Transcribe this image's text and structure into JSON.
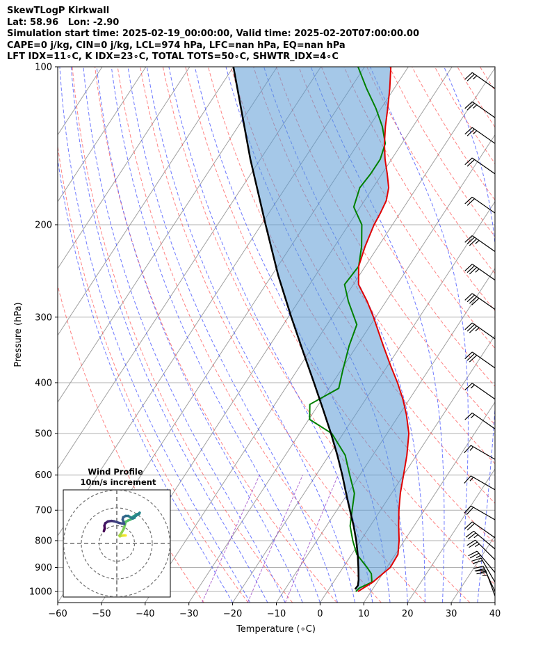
{
  "header": {
    "line1": "SkewTLogP Kirkwall",
    "line2": "Lat: 58.96   Lon: -2.90",
    "line3": "Simulation start time: 2025-02-19_00:00:00, Valid time: 2025-02-20T07:00:00.00",
    "line4": "CAPE=0 j/kg, CIN=0 j/kg, LCL=974 hPa, LFC=nan hPa, EQ=nan hPa",
    "line5": "LFT IDX=11∘C, K IDX=23∘C, TOTAL TOTS=50∘C, SHWTR_IDX=4∘C"
  },
  "chart_data": {
    "type": "skew-t log-p",
    "xlabel": "Temperature (∘C)",
    "ylabel": "Pressure (hPa)",
    "xlim": [
      -60,
      40
    ],
    "ylim": [
      1050,
      100
    ],
    "x_ticks": [
      "−60",
      "−50",
      "−40",
      "−30",
      "−20",
      "−10",
      "0",
      "10",
      "20",
      "30",
      "40"
    ],
    "y_ticks": [
      "100",
      "200",
      "300",
      "400",
      "500",
      "600",
      "700",
      "800",
      "900",
      "1000"
    ],
    "y_tick_values": [
      100,
      200,
      300,
      400,
      500,
      600,
      700,
      800,
      900,
      1000
    ],
    "grid": true,
    "colors": {
      "temperature": "#e00000",
      "dewpoint": "#008000",
      "parcel": "#000000",
      "cape_fill": "#5b9bd5",
      "dry_adiabat": "#ff4040",
      "moist_adiabat": "#3040ff",
      "mixing_ratio": "#9030c0",
      "isotherm": "#a0a0a0"
    },
    "temperature": [
      [
        1000,
        7
      ],
      [
        980,
        8
      ],
      [
        960,
        9
      ],
      [
        925,
        10
      ],
      [
        900,
        10.8
      ],
      [
        850,
        10.6
      ],
      [
        800,
        8.8
      ],
      [
        750,
        6.5
      ],
      [
        700,
        4.2
      ],
      [
        650,
        2
      ],
      [
        600,
        0
      ],
      [
        550,
        -2.2
      ],
      [
        500,
        -5
      ],
      [
        460,
        -8.4
      ],
      [
        430,
        -11.5
      ],
      [
        400,
        -15.2
      ],
      [
        370,
        -19.5
      ],
      [
        340,
        -24
      ],
      [
        300,
        -30.5
      ],
      [
        280,
        -34.3
      ],
      [
        260,
        -38.8
      ],
      [
        240,
        -41.5
      ],
      [
        220,
        -43
      ],
      [
        200,
        -44.2
      ],
      [
        190,
        -44.5
      ],
      [
        180,
        -45
      ],
      [
        170,
        -46.4
      ],
      [
        160,
        -48.8
      ],
      [
        150,
        -51.5
      ],
      [
        140,
        -54
      ],
      [
        130,
        -56.3
      ],
      [
        120,
        -58.5
      ],
      [
        110,
        -61
      ],
      [
        100,
        -64
      ]
    ],
    "dewpoint": [
      [
        1000,
        6.5
      ],
      [
        985,
        6.8
      ],
      [
        960,
        8.8
      ],
      [
        925,
        7.4
      ],
      [
        900,
        5.5
      ],
      [
        850,
        1.2
      ],
      [
        800,
        -1.8
      ],
      [
        750,
        -4.6
      ],
      [
        700,
        -6.5
      ],
      [
        650,
        -8.5
      ],
      [
        600,
        -12.3
      ],
      [
        550,
        -16.3
      ],
      [
        500,
        -22.6
      ],
      [
        470,
        -29.8
      ],
      [
        440,
        -32
      ],
      [
        410,
        -27.8
      ],
      [
        380,
        -29.5
      ],
      [
        340,
        -31.8
      ],
      [
        310,
        -33.2
      ],
      [
        280,
        -38.6
      ],
      [
        260,
        -42
      ],
      [
        240,
        -41.5
      ],
      [
        220,
        -43.8
      ],
      [
        200,
        -47
      ],
      [
        185,
        -51.5
      ],
      [
        170,
        -53
      ],
      [
        160,
        -52.6
      ],
      [
        150,
        -52.6
      ],
      [
        140,
        -53.8
      ],
      [
        130,
        -57
      ],
      [
        120,
        -61.2
      ],
      [
        110,
        -66.3
      ],
      [
        100,
        -71.5
      ]
    ],
    "parcel": [
      [
        990,
        6
      ],
      [
        974,
        6.1
      ],
      [
        950,
        5.4
      ],
      [
        900,
        3.5
      ],
      [
        850,
        1.4
      ],
      [
        800,
        -1
      ],
      [
        750,
        -3.8
      ],
      [
        700,
        -7
      ],
      [
        650,
        -10.4
      ],
      [
        600,
        -14
      ],
      [
        550,
        -18.1
      ],
      [
        500,
        -22.8
      ],
      [
        450,
        -28.2
      ],
      [
        400,
        -34.3
      ],
      [
        350,
        -41.3
      ],
      [
        300,
        -49.3
      ],
      [
        250,
        -58.5
      ],
      [
        200,
        -69
      ],
      [
        150,
        -82.3
      ],
      [
        100,
        -100
      ]
    ],
    "wind_barbs": [
      {
        "p": 1020,
        "speed": 25,
        "dir": 340
      },
      {
        "p": 1000,
        "speed": 25,
        "dir": 335
      },
      {
        "p": 960,
        "speed": 20,
        "dir": 330
      },
      {
        "p": 920,
        "speed": 25,
        "dir": 320
      },
      {
        "p": 870,
        "speed": 25,
        "dir": 315
      },
      {
        "p": 830,
        "speed": 25,
        "dir": 310
      },
      {
        "p": 790,
        "speed": 20,
        "dir": 305
      },
      {
        "p": 730,
        "speed": 20,
        "dir": 300
      },
      {
        "p": 640,
        "speed": 15,
        "dir": 300
      },
      {
        "p": 560,
        "speed": 15,
        "dir": 300
      },
      {
        "p": 490,
        "speed": 15,
        "dir": 305
      },
      {
        "p": 430,
        "speed": 15,
        "dir": 305
      },
      {
        "p": 375,
        "speed": 30,
        "dir": 305
      },
      {
        "p": 330,
        "speed": 35,
        "dir": 305
      },
      {
        "p": 290,
        "speed": 40,
        "dir": 305
      },
      {
        "p": 255,
        "speed": 35,
        "dir": 305
      },
      {
        "p": 225,
        "speed": 35,
        "dir": 305
      },
      {
        "p": 190,
        "speed": 20,
        "dir": 305
      },
      {
        "p": 160,
        "speed": 20,
        "dir": 305
      },
      {
        "p": 140,
        "speed": 25,
        "dir": 305
      },
      {
        "p": 125,
        "speed": 25,
        "dir": 305
      },
      {
        "p": 110,
        "speed": 25,
        "dir": 305
      }
    ],
    "hodograph": {
      "title": "Wind Profile",
      "subtitle": "10m/s increment",
      "rings": [
        10,
        20,
        30
      ],
      "points": [
        [
          5,
          4.5
        ],
        [
          4,
          4.5
        ],
        [
          2.5,
          4.3
        ],
        [
          1.8,
          4
        ],
        [
          1.5,
          4.4
        ],
        [
          2.8,
          6.2
        ],
        [
          3.8,
          8
        ],
        [
          4.6,
          10.5
        ],
        [
          5,
          12.2
        ],
        [
          6.5,
          13
        ],
        [
          7.8,
          13.5
        ],
        [
          8.6,
          14.2
        ],
        [
          10,
          14.4
        ],
        [
          9,
          15
        ],
        [
          11.5,
          16.5
        ],
        [
          12.5,
          16.5
        ],
        [
          12.9,
          17.3
        ],
        [
          9,
          14
        ],
        [
          6.5,
          15.5
        ],
        [
          5,
          15.5
        ],
        [
          3.6,
          14.8
        ],
        [
          3.3,
          13.5
        ],
        [
          4.2,
          11
        ],
        [
          1.6,
          11.5
        ],
        [
          -1.5,
          12.5
        ],
        [
          -3,
          12.7
        ],
        [
          -5,
          12.4
        ],
        [
          -6.5,
          11.4
        ],
        [
          -7,
          10
        ],
        [
          -6.8,
          8.5
        ],
        [
          -7.3,
          6.9
        ]
      ]
    }
  }
}
